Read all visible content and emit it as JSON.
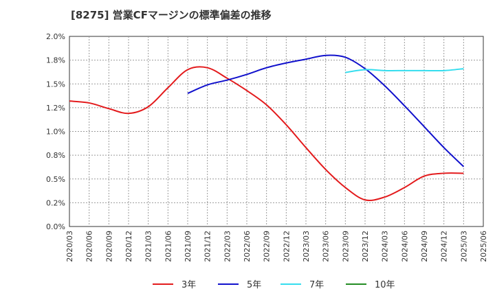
{
  "chart_data": {
    "type": "line",
    "title": "[8275]  営業CFマージンの標準偏差の推移",
    "xlabel": "",
    "ylabel": "",
    "ylim": [
      0,
      2.0
    ],
    "y_ticks": [
      "0.0%",
      "0.2%",
      "0.5%",
      "0.8%",
      "1.0%",
      "1.2%",
      "1.5%",
      "1.8%",
      "2.0%"
    ],
    "y_tick_values": [
      0,
      0.25,
      0.5,
      0.75,
      1.0,
      1.25,
      1.5,
      1.75,
      2.0
    ],
    "x_ticks": [
      "2020/03",
      "2020/06",
      "2020/09",
      "2020/12",
      "2021/03",
      "2021/06",
      "2021/09",
      "2021/12",
      "2022/03",
      "2022/06",
      "2022/09",
      "2022/12",
      "2023/03",
      "2023/06",
      "2023/09",
      "2023/12",
      "2024/03",
      "2024/06",
      "2024/09",
      "2024/12",
      "2025/03",
      "2025/06"
    ],
    "grid": true,
    "legend_position": "bottom",
    "series": [
      {
        "name": "3年",
        "color": "#e31a1c",
        "x": [
          "2020/03",
          "2020/06",
          "2020/09",
          "2020/12",
          "2021/03",
          "2021/06",
          "2021/09",
          "2021/12",
          "2022/03",
          "2022/06",
          "2022/09",
          "2022/12",
          "2023/03",
          "2023/06",
          "2023/09",
          "2023/12",
          "2024/03",
          "2024/06",
          "2024/09",
          "2024/12",
          "2025/03"
        ],
        "values": [
          1.32,
          1.3,
          1.24,
          1.19,
          1.26,
          1.46,
          1.65,
          1.67,
          1.56,
          1.43,
          1.28,
          1.07,
          0.83,
          0.6,
          0.41,
          0.28,
          0.31,
          0.41,
          0.53,
          0.56,
          0.56
        ]
      },
      {
        "name": "5年",
        "color": "#1010cc",
        "x": [
          "2021/09",
          "2021/12",
          "2022/03",
          "2022/06",
          "2022/09",
          "2022/12",
          "2023/03",
          "2023/06",
          "2023/09",
          "2023/12",
          "2024/03",
          "2024/06",
          "2024/09",
          "2024/12",
          "2025/03"
        ],
        "values": [
          1.4,
          1.49,
          1.54,
          1.6,
          1.67,
          1.72,
          1.76,
          1.8,
          1.78,
          1.66,
          1.48,
          1.27,
          1.05,
          0.83,
          0.63
        ]
      },
      {
        "name": "7年",
        "color": "#33ddee",
        "x": [
          "2023/09",
          "2023/12",
          "2024/03",
          "2024/06",
          "2024/09",
          "2024/12",
          "2025/03"
        ],
        "values": [
          1.62,
          1.65,
          1.64,
          1.64,
          1.64,
          1.64,
          1.66
        ]
      },
      {
        "name": "10年",
        "color": "#228b22",
        "x": [],
        "values": []
      }
    ]
  }
}
